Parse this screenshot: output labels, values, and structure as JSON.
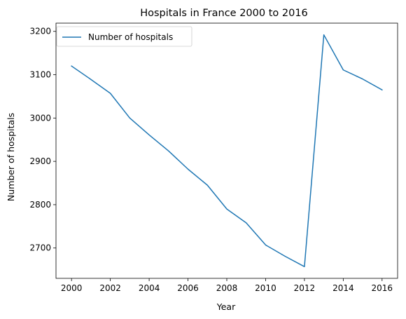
{
  "chart_data": {
    "type": "line",
    "title": "Hospitals in France 2000 to 2016",
    "xlabel": "Year",
    "ylabel": "Number of hospitals",
    "x": [
      2000,
      2001,
      2002,
      2003,
      2004,
      2005,
      2006,
      2007,
      2008,
      2009,
      2010,
      2011,
      2012,
      2013,
      2014,
      2015,
      2016
    ],
    "series": [
      {
        "name": "Number of hospitals",
        "values": [
          3120,
          3089,
          3057,
          3000,
          2961,
          2924,
          2882,
          2845,
          2790,
          2758,
          2707,
          2681,
          2657,
          3192,
          3111,
          3090,
          3065
        ],
        "color": "#1f77b4"
      }
    ],
    "xticks": [
      2000,
      2002,
      2004,
      2006,
      2008,
      2010,
      2012,
      2014,
      2016
    ],
    "yticks": [
      2700,
      2800,
      2900,
      3000,
      3100,
      3200
    ],
    "xlim": [
      1999.2,
      2016.8
    ],
    "ylim": [
      2630,
      3219
    ],
    "grid": false,
    "legend_position": "top-left"
  }
}
